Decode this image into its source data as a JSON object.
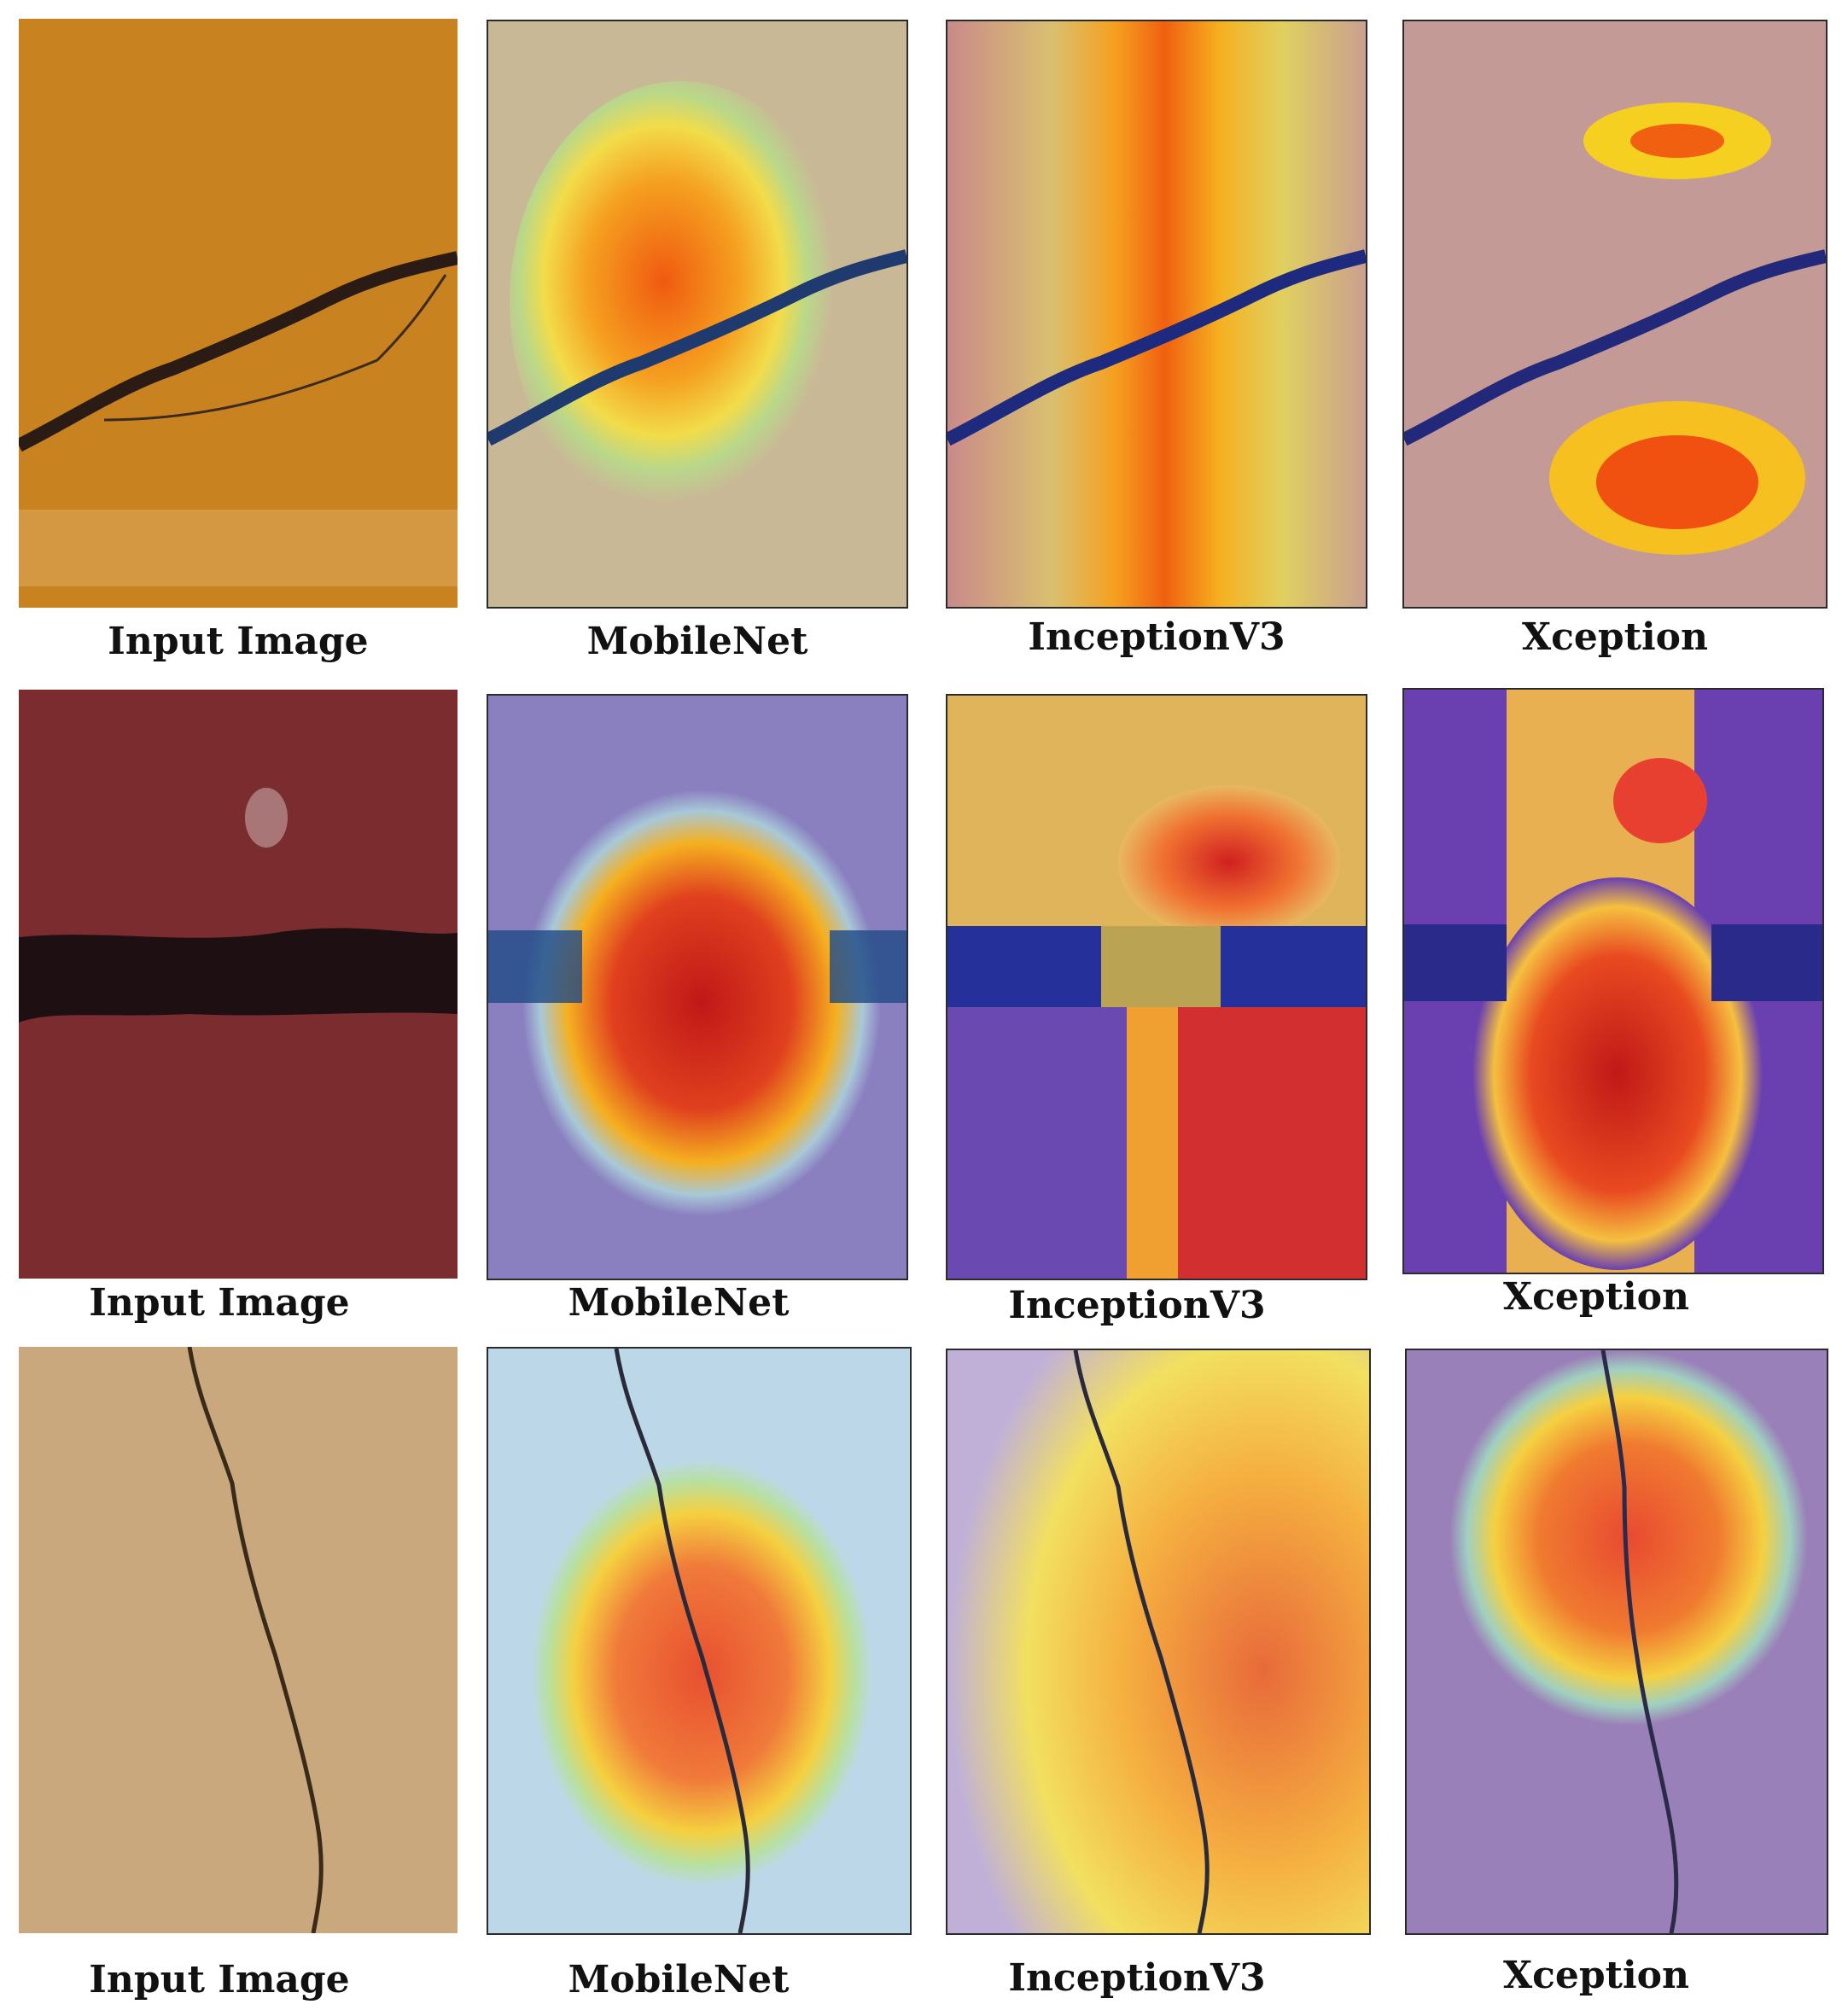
{
  "rows": [
    {
      "labels": [
        "Input Image",
        "MobileNet",
        "InceptionV3",
        "Xception"
      ]
    },
    {
      "labels": [
        "Input Image",
        "MobileNet",
        "InceptionV3",
        "Xception"
      ]
    },
    {
      "labels": [
        "Input Image",
        "MobileNet",
        "InceptionV3",
        "Xception"
      ]
    }
  ],
  "colors": {
    "row1_input": "#c8821f",
    "row2_input": "#7a2c2f",
    "row3_input": "#c8a87c",
    "heat_high": "#e0301e",
    "heat_mid": "#f5d020",
    "heat_low": "#7f57b8"
  }
}
